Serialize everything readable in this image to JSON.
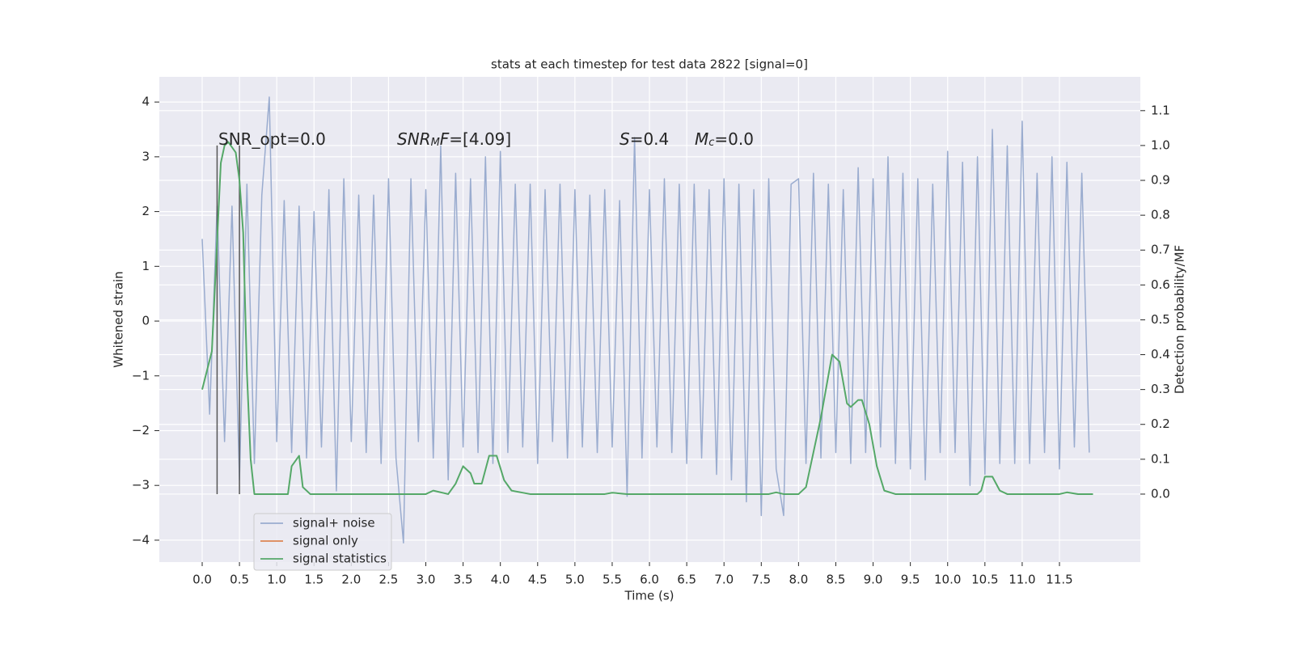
{
  "chart_data": {
    "type": "line",
    "title": "stats at each timestep for test data 2822 [signal=0]",
    "xlabel": "Time (s)",
    "ylabel": "Whitened strain",
    "y2label": "Detection probability/MF",
    "xlim": [
      -0.575,
      12.585
    ],
    "ylim": [
      -4.4,
      4.46
    ],
    "y2lim": [
      -0.195,
      1.197
    ],
    "xticks": [
      {
        "value": 0,
        "label": "0.0"
      },
      0.5,
      {
        "value": 1,
        "label": "1.0"
      },
      1.5,
      {
        "value": 2,
        "label": "2.0"
      },
      2.5,
      {
        "value": 3,
        "label": "3.0"
      },
      3.5,
      {
        "value": 4,
        "label": "4.0"
      },
      4.5,
      {
        "value": 5,
        "label": "5.0"
      },
      5.5,
      {
        "value": 6,
        "label": "6.0"
      },
      6.5,
      {
        "value": 7,
        "label": "7.0"
      },
      7.5,
      {
        "value": 8,
        "label": "8.0"
      },
      8.5,
      {
        "value": 9,
        "label": "9.0"
      },
      9.5,
      {
        "value": 10,
        "label": "10.0"
      },
      10.5,
      {
        "value": 11,
        "label": "11.0"
      },
      11.5
    ],
    "yticks": [
      {
        "value": -4,
        "label": "−4"
      },
      {
        "value": -3,
        "label": "−3"
      },
      {
        "value": -2,
        "label": "−2"
      },
      {
        "value": -1,
        "label": "−1"
      },
      0,
      1,
      2,
      3,
      4
    ],
    "y2ticks": [
      {
        "value": 0,
        "label": "0.0"
      },
      0.1,
      0.2,
      0.3,
      0.4,
      0.5,
      0.6,
      0.7,
      0.8,
      0.9,
      {
        "value": 1,
        "label": "1.0"
      },
      1.1
    ],
    "grid": true,
    "legend": "lower left",
    "series": [
      {
        "name": "signal+ noise",
        "color": "#9aaccf",
        "axis": "y",
        "x": [
          0,
          0.1,
          0.2,
          0.3,
          0.4,
          0.5,
          0.6,
          0.7,
          0.8,
          0.9,
          1,
          1.1,
          1.2,
          1.3,
          1.4,
          1.5,
          1.6,
          1.7,
          1.8,
          1.9,
          2,
          2.1,
          2.2,
          2.3,
          2.4,
          2.5,
          2.6,
          2.7,
          2.8,
          2.9,
          3,
          3.1,
          3.2,
          3.3,
          3.4,
          3.5,
          3.6,
          3.7,
          3.8,
          3.9,
          4,
          4.1,
          4.2,
          4.3,
          4.4,
          4.5,
          4.6,
          4.7,
          4.8,
          4.9,
          5,
          5.1,
          5.2,
          5.3,
          5.4,
          5.5,
          5.6,
          5.7,
          5.8,
          5.9,
          6,
          6.1,
          6.2,
          6.3,
          6.4,
          6.5,
          6.6,
          6.7,
          6.8,
          6.9,
          7,
          7.1,
          7.2,
          7.3,
          7.4,
          7.5,
          7.6,
          7.7,
          7.8,
          7.9,
          8,
          8.1,
          8.2,
          8.3,
          8.4,
          8.5,
          8.6,
          8.7,
          8.8,
          8.9,
          9,
          9.1,
          9.2,
          9.3,
          9.4,
          9.5,
          9.6,
          9.7,
          9.8,
          9.9,
          10,
          10.1,
          10.2,
          10.3,
          10.4,
          10.5,
          10.6,
          10.7,
          10.8,
          10.9,
          11,
          11.1,
          11.2,
          11.3,
          11.4,
          11.5,
          11.6,
          11.7,
          11.8,
          11.9
        ],
        "values": [
          1.5,
          -1.7,
          2.1,
          -2.2,
          2.1,
          -2.9,
          2.5,
          -2.6,
          2.3,
          4.09,
          -2.2,
          2.2,
          -2.4,
          2.1,
          -2.5,
          2.0,
          -2.3,
          2.4,
          -3.1,
          2.6,
          -2.2,
          2.3,
          -2.4,
          2.3,
          -2.6,
          2.6,
          -2.5,
          -4.05,
          2.6,
          -2.2,
          2.4,
          -2.5,
          3.2,
          -2.9,
          2.7,
          -2.3,
          2.6,
          -2.4,
          3.0,
          -2.6,
          3.1,
          -2.4,
          2.5,
          -2.3,
          2.5,
          -2.6,
          2.4,
          -2.2,
          2.5,
          -2.5,
          2.4,
          -2.3,
          2.3,
          -2.4,
          2.4,
          -2.3,
          2.2,
          -3.2,
          3.35,
          -2.5,
          2.4,
          -2.3,
          2.6,
          -2.4,
          2.5,
          -2.6,
          2.5,
          -2.5,
          2.4,
          -2.8,
          2.6,
          -2.9,
          2.5,
          -3.3,
          2.4,
          -3.55,
          2.6,
          -2.7,
          -3.55,
          2.5,
          2.6,
          -2.6,
          2.7,
          -2.5,
          2.5,
          -2.4,
          2.4,
          -2.6,
          2.8,
          -2.4,
          2.6,
          -2.3,
          3.0,
          -2.6,
          2.7,
          -2.7,
          2.6,
          -2.9,
          2.5,
          -2.4,
          3.1,
          -2.4,
          2.9,
          -3.0,
          3.0,
          -2.8,
          3.5,
          -2.6,
          3.2,
          -2.6,
          3.65,
          -2.6,
          2.7,
          -2.4,
          3.0,
          -2.7,
          2.9,
          -2.3,
          2.7,
          -2.4
        ]
      },
      {
        "name": "signal only",
        "color": "#dd8452",
        "axis": "y",
        "x": [],
        "values": []
      },
      {
        "name": "signal statistics",
        "color": "#55a868",
        "axis": "y2",
        "x": [
          0,
          0.13,
          0.25,
          0.3,
          0.35,
          0.45,
          0.5,
          0.55,
          0.6,
          0.65,
          0.7,
          1.15,
          1.2,
          1.3,
          1.35,
          1.45,
          3.0,
          3.1,
          3.3,
          3.4,
          3.5,
          3.6,
          3.65,
          3.75,
          3.85,
          3.95,
          4.05,
          4.15,
          4.4,
          5.4,
          5.5,
          5.7,
          7.6,
          7.7,
          7.8,
          8.0,
          8.1,
          8.2,
          8.3,
          8.4,
          8.45,
          8.55,
          8.65,
          8.7,
          8.8,
          8.85,
          8.95,
          9.05,
          9.15,
          9.3,
          10.4,
          10.45,
          10.5,
          10.6,
          10.7,
          10.8,
          11.5,
          11.6,
          11.75,
          11.95
        ],
        "values": [
          0.3,
          0.41,
          0.95,
          1.0,
          1.01,
          0.98,
          0.9,
          0.75,
          0.35,
          0.1,
          0.0,
          0.0,
          0.08,
          0.11,
          0.02,
          0.0,
          0.0,
          0.01,
          0.0,
          0.03,
          0.08,
          0.06,
          0.03,
          0.03,
          0.11,
          0.11,
          0.04,
          0.01,
          0.0,
          0.0,
          0.004,
          0.0,
          0.0,
          0.005,
          0.0,
          0.0,
          0.02,
          0.12,
          0.22,
          0.34,
          0.4,
          0.38,
          0.26,
          0.25,
          0.27,
          0.27,
          0.2,
          0.08,
          0.01,
          0.0,
          0.0,
          0.01,
          0.05,
          0.05,
          0.01,
          0.0,
          0.0,
          0.005,
          0.0,
          0.0
        ]
      }
    ],
    "vlines": {
      "color": "#555555",
      "axis": "y2",
      "x": [
        0.2,
        0.5
      ],
      "ymin": 0,
      "ymax": 1
    },
    "annotations": [
      [
        {
          "text": "SNR_opt=0.0"
        }
      ],
      [
        {
          "text": "SNR",
          "italic": true
        },
        {
          "text": "M",
          "italic": true,
          "sub": true
        },
        {
          "text": "F",
          "italic": true
        },
        {
          "text": "=[4.09]"
        }
      ],
      [
        {
          "text": "S",
          "italic": true
        },
        {
          "text": "=0.4"
        }
      ],
      [
        {
          "text": "M",
          "italic": true
        },
        {
          "text": "c",
          "italic": true,
          "sub": true
        },
        {
          "text": "=0.0"
        }
      ]
    ]
  }
}
